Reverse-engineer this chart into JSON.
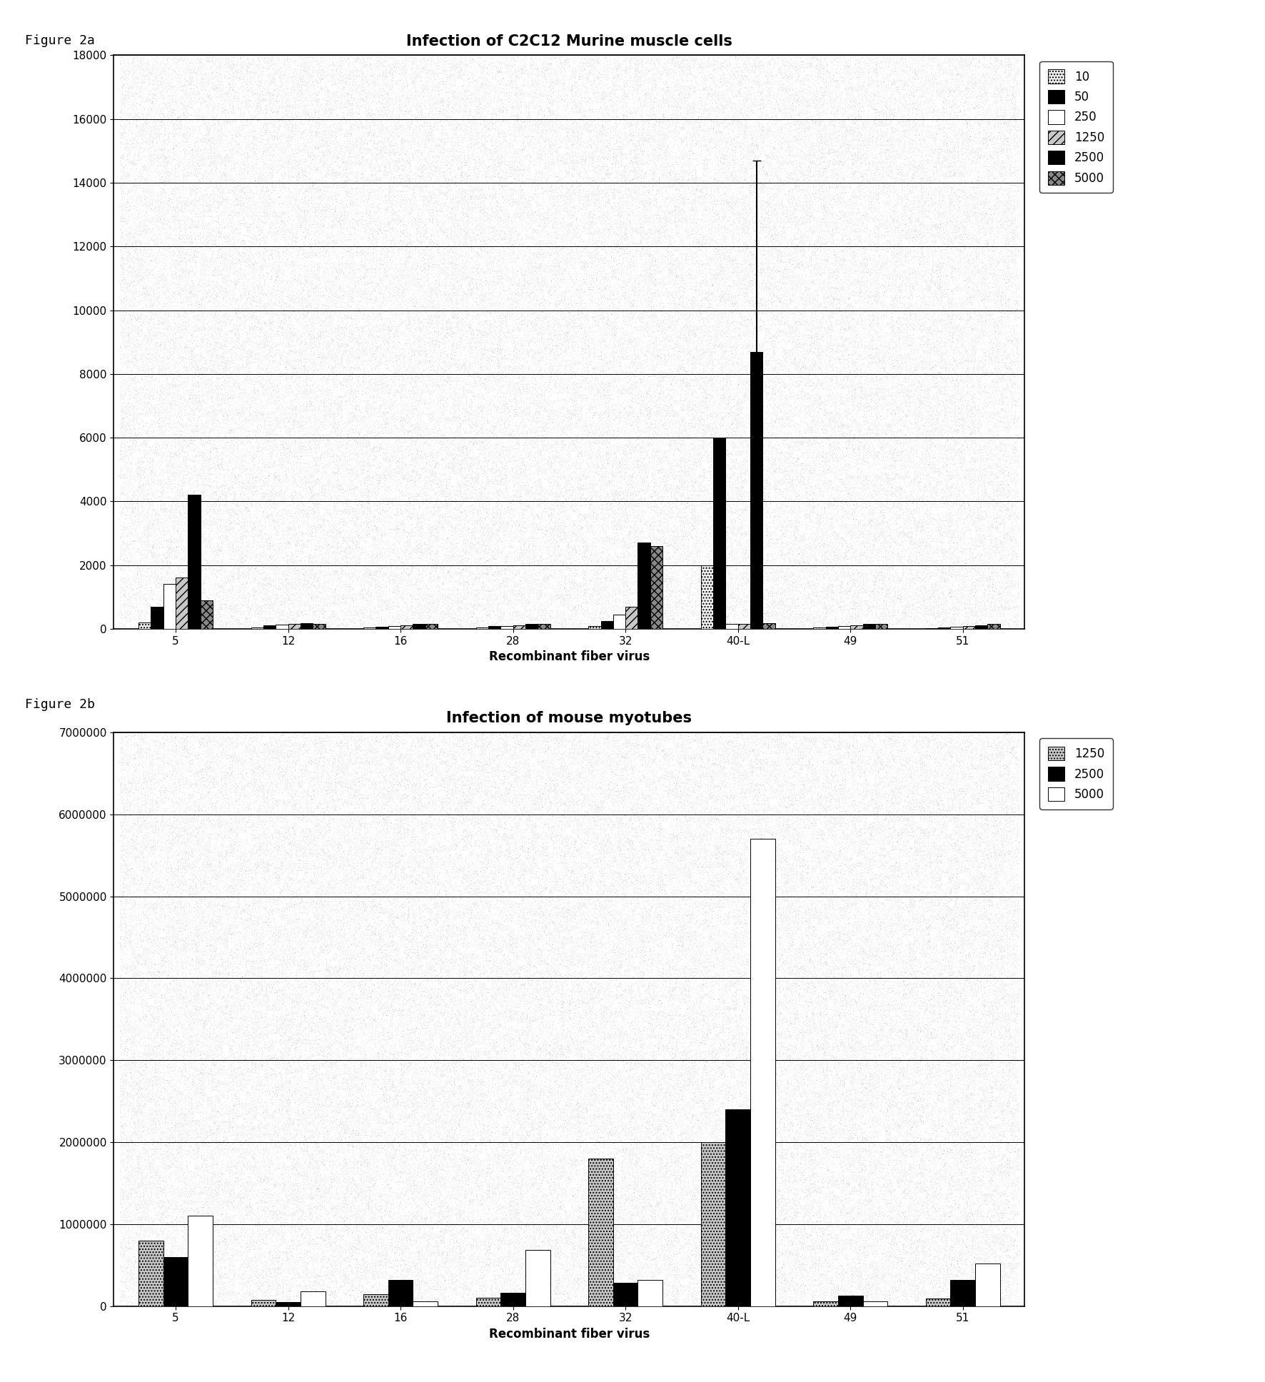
{
  "fig2a": {
    "title": "Infection of C2C12 Murine muscle cells",
    "xlabel": "Recombinant fiber virus",
    "categories": [
      "5",
      "12",
      "16",
      "28",
      "32",
      "40-L",
      "49",
      "51"
    ],
    "series_labels": [
      "10",
      "50",
      "250",
      "1250",
      "2500",
      "5000"
    ],
    "ylim": [
      0,
      18000
    ],
    "yticks": [
      0,
      2000,
      4000,
      6000,
      8000,
      10000,
      12000,
      14000,
      16000,
      18000
    ],
    "data": [
      [
        200,
        50,
        40,
        40,
        80,
        2000,
        50,
        30
      ],
      [
        700,
        120,
        60,
        80,
        250,
        6000,
        60,
        40
      ],
      [
        1400,
        130,
        80,
        90,
        450,
        150,
        80,
        70
      ],
      [
        1600,
        160,
        110,
        120,
        700,
        160,
        110,
        80
      ],
      [
        4200,
        170,
        160,
        160,
        2700,
        8700,
        160,
        120
      ],
      [
        900,
        160,
        160,
        160,
        2600,
        170,
        160,
        160
      ]
    ],
    "error_bar_series": 4,
    "error_bar_cat": 5,
    "error_bar_val": 6000,
    "figure_label": "Figure 2a"
  },
  "fig2b": {
    "title": "Infection of mouse myotubes",
    "xlabel": "Recombinant fiber virus",
    "categories": [
      "5",
      "12",
      "16",
      "28",
      "32",
      "40-L",
      "49",
      "51"
    ],
    "series_labels": [
      "1250",
      "2500",
      "5000"
    ],
    "ylim": [
      0,
      7000000
    ],
    "yticks": [
      0,
      1000000,
      2000000,
      3000000,
      4000000,
      5000000,
      6000000,
      7000000
    ],
    "data": [
      [
        800000,
        70000,
        140000,
        100000,
        1800000,
        2000000,
        60000,
        90000
      ],
      [
        600000,
        50000,
        320000,
        160000,
        280000,
        2400000,
        130000,
        320000
      ],
      [
        1100000,
        180000,
        60000,
        680000,
        320000,
        5700000,
        60000,
        520000
      ]
    ],
    "figure_label": "Figure 2b"
  },
  "title_fontsize": 15,
  "label_fontsize": 12,
  "tick_fontsize": 11,
  "fig_label_fontsize": 13
}
